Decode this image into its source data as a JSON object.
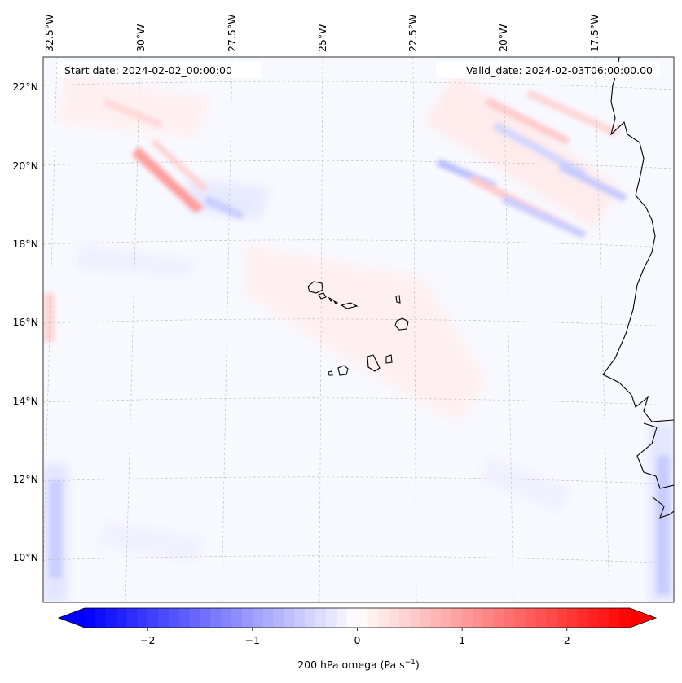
{
  "header": {
    "start_date": "Start date: 2024-02-02_00:00:00",
    "valid_date": "Valid_date: 2024-02-03T06:00:00.00"
  },
  "map": {
    "longitude_labels": [
      "32.5°W",
      "30°W",
      "27.5°W",
      "25°W",
      "22.5°W",
      "20°W",
      "17.5°W"
    ],
    "latitude_labels": [
      "22°N",
      "20°N",
      "18°N",
      "16°N",
      "14°N",
      "12°N",
      "10°N"
    ],
    "features": [
      "coastline-west-africa",
      "cape-verde-islands"
    ]
  },
  "colorbar": {
    "label_main": "200 hPa omega (Pa s",
    "label_exp": "−1",
    "label_end": ")",
    "ticks": [
      "−2",
      "−1",
      "0",
      "1",
      "2"
    ],
    "tick_values": [
      -2,
      -1,
      0,
      1,
      2
    ],
    "range": [
      -2.6,
      2.6
    ],
    "colormap": "bwr",
    "color_low": "#0000ff",
    "color_mid": "#ffffff",
    "color_high": "#ff0000"
  }
}
